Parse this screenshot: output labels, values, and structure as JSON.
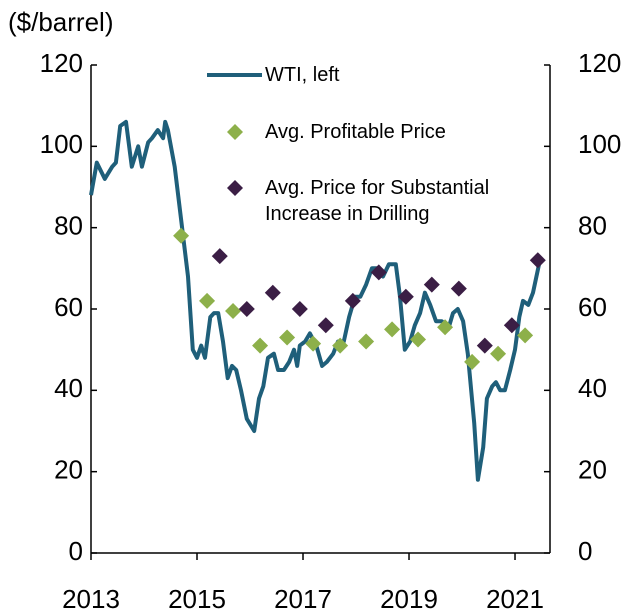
{
  "chart_data": {
    "type": "line",
    "ylabel": "($/barrel)",
    "xlim": [
      2013,
      2021.66
    ],
    "xticks": [
      2013,
      2015,
      2017,
      2019,
      2021
    ],
    "ylim": [
      0,
      120
    ],
    "yticks": [
      0,
      20,
      40,
      60,
      80,
      100,
      120
    ],
    "y2lim": [
      0,
      120
    ],
    "y2ticks": [
      0,
      20,
      40,
      60,
      80,
      100,
      120
    ],
    "series": [
      {
        "name": "WTI, left",
        "color": "#1f5f7a",
        "kind": "line",
        "x": [
          2013.0,
          2013.11,
          2013.26,
          2013.4,
          2013.47,
          2013.55,
          2013.66,
          2013.77,
          2013.89,
          2013.96,
          2014.08,
          2014.15,
          2014.26,
          2014.36,
          2014.4,
          2014.45,
          2014.58,
          2014.7,
          2014.83,
          2014.92,
          2015.0,
          2015.08,
          2015.15,
          2015.25,
          2015.32,
          2015.4,
          2015.49,
          2015.58,
          2015.66,
          2015.74,
          2015.83,
          2015.94,
          2016.08,
          2016.17,
          2016.25,
          2016.34,
          2016.45,
          2016.53,
          2016.64,
          2016.74,
          2016.83,
          2016.89,
          2016.94,
          2017.04,
          2017.13,
          2017.25,
          2017.36,
          2017.45,
          2017.57,
          2017.66,
          2017.77,
          2017.87,
          2017.98,
          2018.08,
          2018.19,
          2018.3,
          2018.4,
          2018.51,
          2018.62,
          2018.75,
          2018.83,
          2018.92,
          2019.02,
          2019.11,
          2019.21,
          2019.3,
          2019.4,
          2019.51,
          2019.62,
          2019.74,
          2019.83,
          2019.92,
          2020.02,
          2020.11,
          2020.23,
          2020.3,
          2020.4,
          2020.47,
          2020.57,
          2020.64,
          2020.72,
          2020.81,
          2020.91,
          2021.0,
          2021.08,
          2021.15,
          2021.25,
          2021.34,
          2021.47
        ],
        "values": [
          88,
          96,
          92,
          95,
          96,
          105,
          106,
          95,
          100,
          95,
          101,
          102,
          104,
          102,
          106,
          104,
          95,
          82,
          68,
          50,
          48,
          51,
          48,
          58,
          59,
          59,
          52,
          43,
          46,
          45,
          40,
          33,
          30,
          38,
          41,
          48,
          49,
          45,
          45,
          47,
          50,
          46,
          51,
          52,
          54,
          51,
          46,
          47,
          49,
          52,
          52,
          58,
          63,
          63,
          66,
          70,
          70,
          68,
          71,
          71,
          63,
          50,
          52,
          56,
          59,
          64,
          61,
          57,
          57,
          55,
          59,
          60,
          57,
          49,
          32,
          18,
          26,
          38,
          41,
          42,
          40,
          40,
          45,
          50,
          58,
          62,
          61,
          64,
          72
        ]
      },
      {
        "name": "Avg. Profitable Price",
        "color": "#8db04a",
        "kind": "scatter",
        "x": [
          2014.7,
          2015.19,
          2015.68,
          2016.19,
          2016.7,
          2017.19,
          2017.7,
          2018.19,
          2018.68,
          2019.17,
          2019.68,
          2020.19,
          2020.68,
          2021.19
        ],
        "values": [
          78,
          62,
          59.5,
          51,
          53,
          51.5,
          51,
          52,
          55,
          52.5,
          55.5,
          47,
          49,
          53.5
        ]
      },
      {
        "name": "Avg. Price for Substantial Increase in Drilling",
        "color": "#3b1e45",
        "kind": "scatter",
        "x": [
          2015.43,
          2015.94,
          2016.43,
          2016.94,
          2017.43,
          2017.94,
          2018.43,
          2018.94,
          2019.43,
          2019.94,
          2020.43,
          2020.94,
          2021.43
        ],
        "values": [
          73,
          60,
          64,
          60,
          56,
          62,
          69,
          63,
          66,
          65,
          51,
          56,
          72
        ]
      }
    ]
  }
}
